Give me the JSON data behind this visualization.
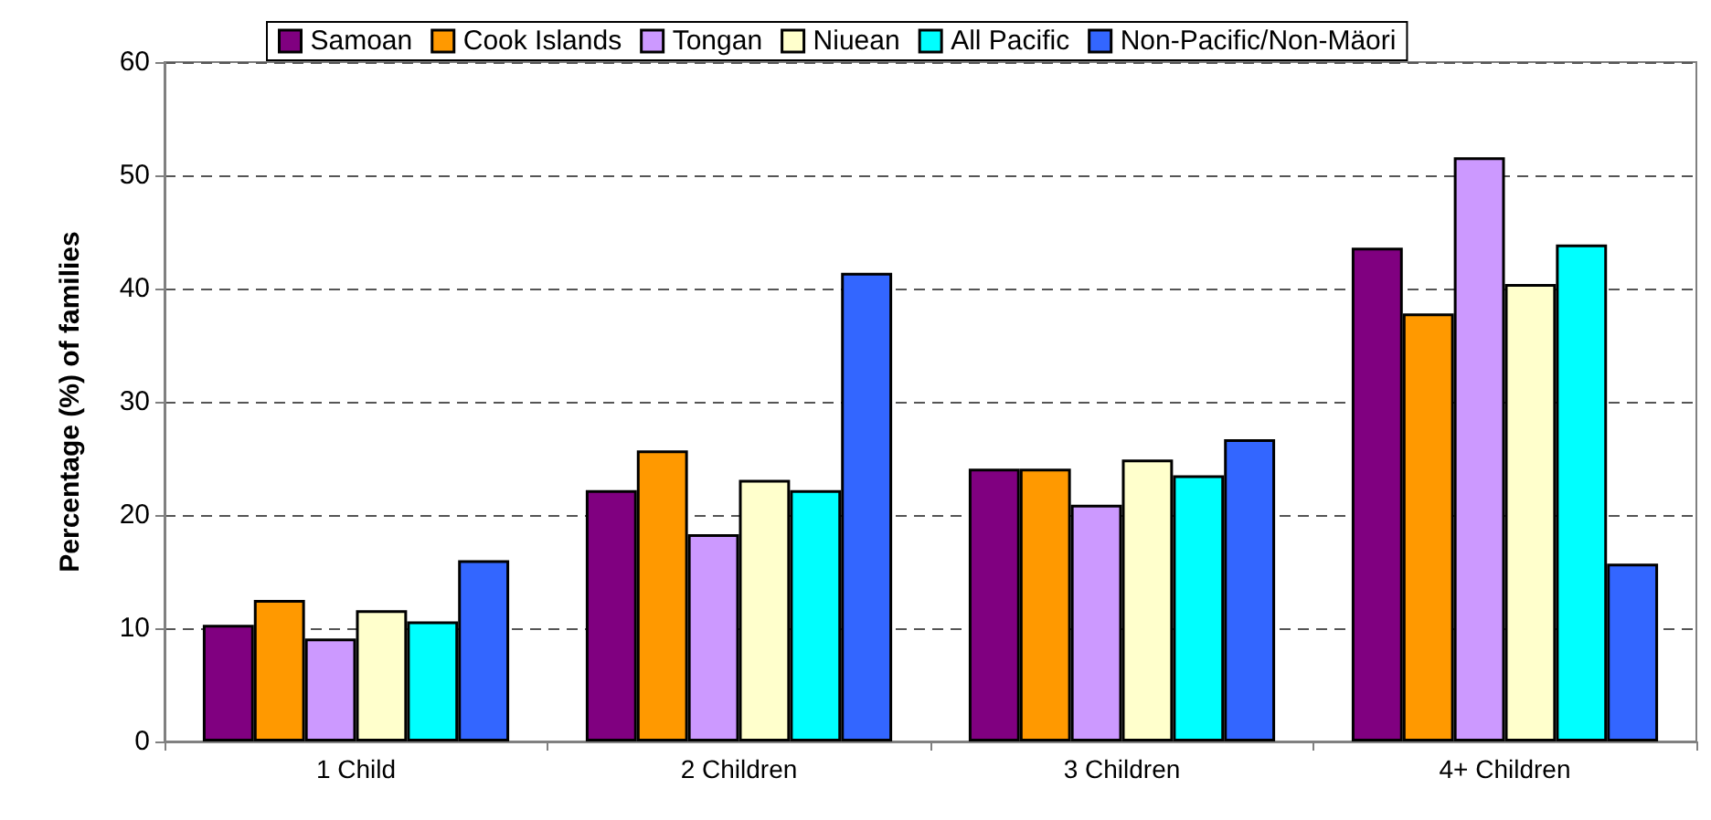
{
  "chart_data": {
    "type": "bar",
    "ylabel": "Percentage (%) of families",
    "categories": [
      "1 Child",
      "2 Children",
      "3 Children",
      "4+ Children"
    ],
    "series": [
      {
        "name": "Samoan",
        "color": "#800080",
        "values": [
          10.3,
          22.2,
          24.1,
          43.6
        ]
      },
      {
        "name": "Cook Islands",
        "color": "#ff9900",
        "values": [
          12.5,
          25.7,
          24.1,
          37.8
        ]
      },
      {
        "name": "Tongan",
        "color": "#cc99ff",
        "values": [
          9.1,
          18.3,
          20.9,
          51.6
        ]
      },
      {
        "name": "Niuean",
        "color": "#ffffcc",
        "values": [
          11.6,
          23.1,
          24.9,
          40.4
        ]
      },
      {
        "name": "All Pacific",
        "color": "#00ffff",
        "values": [
          10.6,
          22.2,
          23.5,
          43.9
        ]
      },
      {
        "name": "Non-Pacific/Non-Mäori",
        "color": "#3366ff",
        "values": [
          16.0,
          41.4,
          26.7,
          15.7
        ]
      }
    ],
    "ylim": [
      0,
      60
    ],
    "yticks": [
      0,
      10,
      20,
      30,
      40,
      50,
      60
    ],
    "grid": "y",
    "legend": "top"
  }
}
